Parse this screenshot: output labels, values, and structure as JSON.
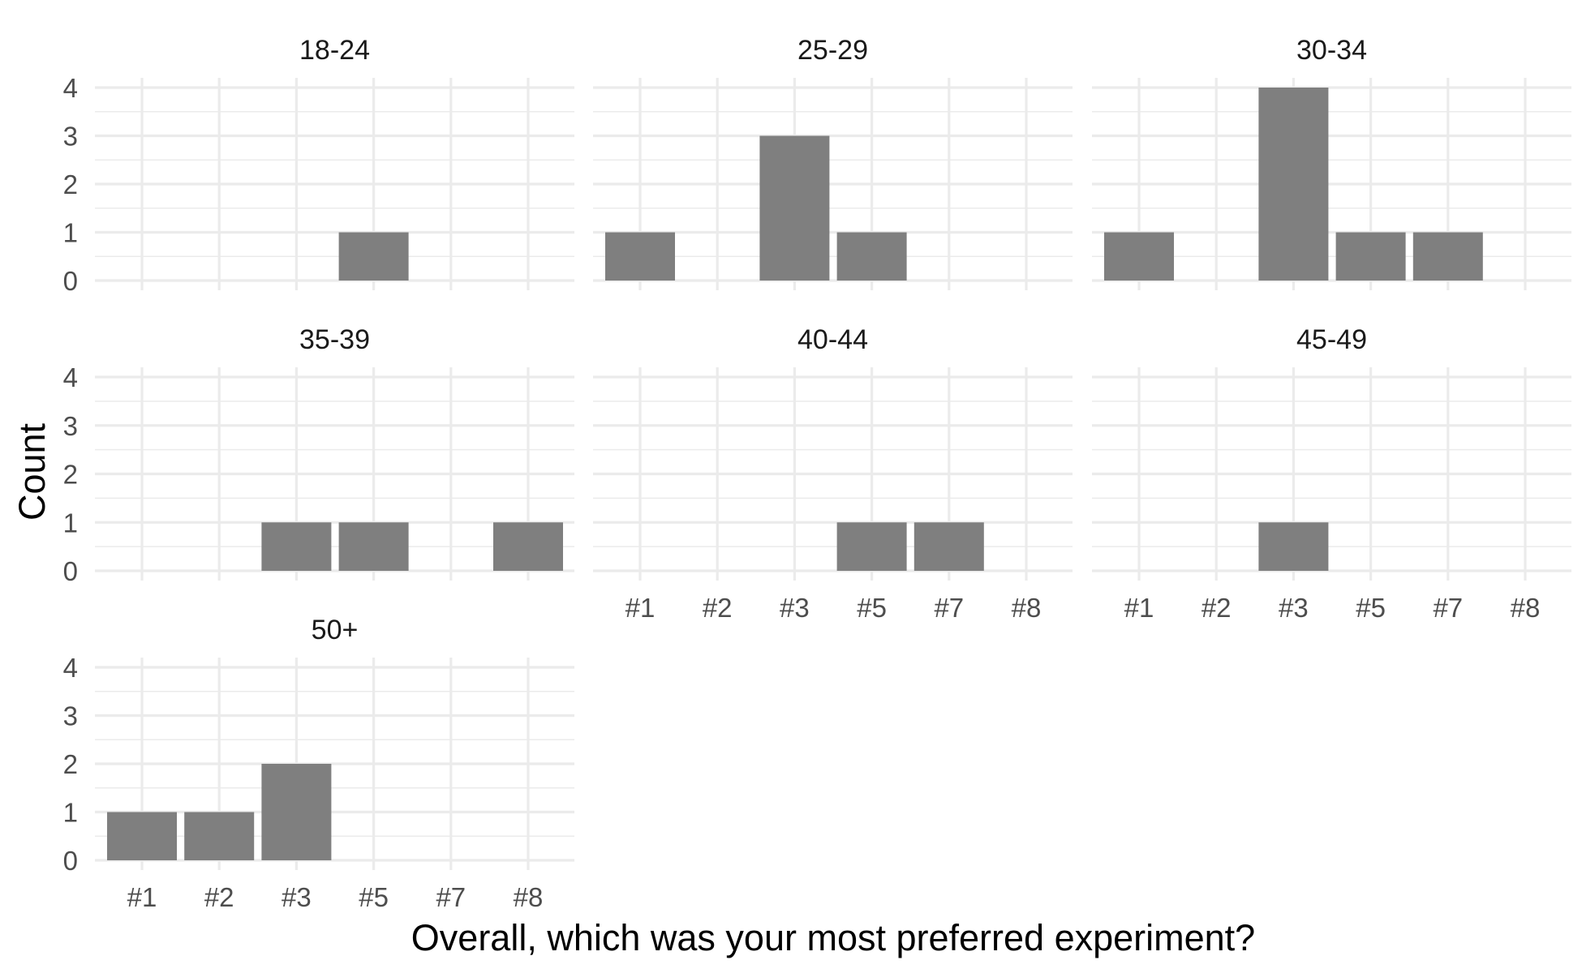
{
  "chart_data": {
    "type": "bar",
    "xlabel": "Overall, which was your most preferred experiment?",
    "ylabel": "Count",
    "categories": [
      "#1",
      "#2",
      "#3",
      "#5",
      "#7",
      "#8"
    ],
    "ylim": [
      0,
      4
    ],
    "yticks": [
      0,
      1,
      2,
      3,
      4
    ],
    "grid": true,
    "bar_color": "#7f7f7f",
    "gridline_color": "#ebebeb",
    "facets": [
      {
        "panel": "18-24",
        "values": [
          0,
          0,
          0,
          1,
          0,
          0
        ]
      },
      {
        "panel": "25-29",
        "values": [
          1,
          0,
          3,
          1,
          0,
          0
        ]
      },
      {
        "panel": "30-34",
        "values": [
          1,
          0,
          4,
          1,
          1,
          0
        ]
      },
      {
        "panel": "35-39",
        "values": [
          0,
          0,
          1,
          1,
          0,
          1
        ]
      },
      {
        "panel": "40-44",
        "values": [
          0,
          0,
          0,
          1,
          1,
          0
        ]
      },
      {
        "panel": "45-49",
        "values": [
          0,
          0,
          1,
          0,
          0,
          0
        ]
      },
      {
        "panel": "50+",
        "values": [
          1,
          1,
          2,
          0,
          0,
          0
        ]
      }
    ]
  }
}
